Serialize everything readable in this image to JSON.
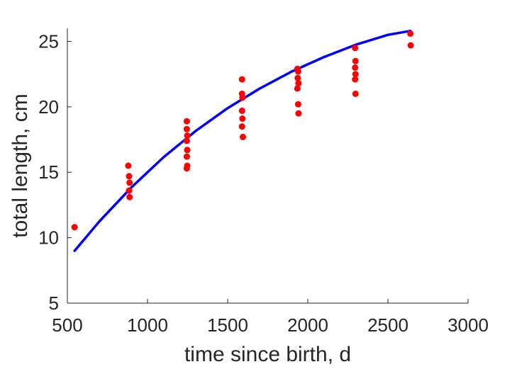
{
  "chart_data": {
    "type": "scatter",
    "title": "",
    "xlabel": "time since birth, d",
    "ylabel": "total length, cm",
    "xlim": [
      500,
      3000
    ],
    "ylim": [
      5,
      26
    ],
    "xticks": [
      500,
      1000,
      1500,
      2000,
      2500,
      3000
    ],
    "yticks": [
      5,
      10,
      15,
      20,
      25
    ],
    "grid": false,
    "legend": "none",
    "series": [
      {
        "type": "scatter",
        "color": "#ff0000",
        "points": [
          [
            545,
            10.8
          ],
          [
            880,
            15.5
          ],
          [
            885,
            14.7
          ],
          [
            888,
            14.2
          ],
          [
            885,
            13.6
          ],
          [
            888,
            13.1
          ],
          [
            1245,
            18.9
          ],
          [
            1245,
            18.3
          ],
          [
            1248,
            17.8
          ],
          [
            1245,
            17.4
          ],
          [
            1248,
            16.7
          ],
          [
            1245,
            16.2
          ],
          [
            1248,
            15.5
          ],
          [
            1245,
            15.3
          ],
          [
            1590,
            22.1
          ],
          [
            1590,
            21.0
          ],
          [
            1592,
            20.7
          ],
          [
            1590,
            19.7
          ],
          [
            1592,
            19.1
          ],
          [
            1590,
            18.5
          ],
          [
            1595,
            17.7
          ],
          [
            1935,
            22.9
          ],
          [
            1940,
            22.7
          ],
          [
            1937,
            22.2
          ],
          [
            1942,
            21.8
          ],
          [
            1935,
            21.4
          ],
          [
            1940,
            20.2
          ],
          [
            1942,
            19.5
          ],
          [
            2295,
            24.5
          ],
          [
            2298,
            23.5
          ],
          [
            2295,
            23.0
          ],
          [
            2298,
            22.5
          ],
          [
            2295,
            22.1
          ],
          [
            2298,
            21.0
          ],
          [
            2640,
            25.6
          ],
          [
            2642,
            24.7
          ]
        ]
      },
      {
        "type": "line",
        "color": "#0000ff",
        "x": [
          545,
          700,
          900,
          1100,
          1300,
          1500,
          1700,
          1900,
          2100,
          2300,
          2500,
          2640
        ],
        "y": [
          9.0,
          11.25,
          13.85,
          16.15,
          18.15,
          19.9,
          21.4,
          22.7,
          23.8,
          24.75,
          25.5,
          25.8
        ]
      }
    ]
  }
}
